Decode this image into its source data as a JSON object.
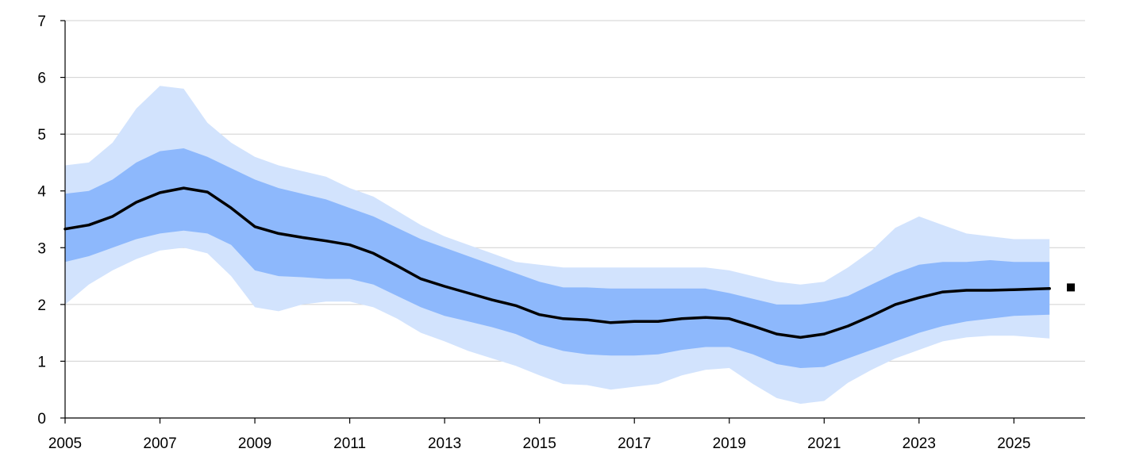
{
  "chart_data": {
    "type": "area",
    "title": "",
    "xlabel": "",
    "ylabel": "",
    "xlim": [
      2005,
      2026.5
    ],
    "ylim": [
      0,
      7
    ],
    "x_ticks": [
      "2005",
      "2007",
      "2009",
      "2011",
      "2013",
      "2015",
      "2017",
      "2019",
      "2021",
      "2023",
      "2025"
    ],
    "y_ticks": [
      "0",
      "1",
      "2",
      "3",
      "4",
      "5",
      "6",
      "7"
    ],
    "grid": "horizontal",
    "legend": "none",
    "colors": {
      "outer_band": "#d2e3fd",
      "inner_band": "#8db8fc",
      "median_line": "#000000",
      "point_marker": "#000000",
      "gridline": "#d0d0d0"
    },
    "x": [
      2005.0,
      2005.5,
      2006.0,
      2006.5,
      2007.0,
      2007.5,
      2008.0,
      2008.5,
      2009.0,
      2009.5,
      2010.0,
      2010.5,
      2011.0,
      2011.5,
      2012.0,
      2012.5,
      2013.0,
      2013.5,
      2014.0,
      2014.5,
      2015.0,
      2015.5,
      2016.0,
      2016.5,
      2017.0,
      2017.5,
      2018.0,
      2018.5,
      2019.0,
      2019.5,
      2020.0,
      2020.5,
      2021.0,
      2021.5,
      2022.0,
      2022.5,
      2023.0,
      2023.5,
      2024.0,
      2024.5,
      2025.0,
      2025.75
    ],
    "series": [
      {
        "role": "outer_band_upper",
        "values": [
          4.45,
          4.5,
          4.85,
          5.45,
          5.85,
          5.8,
          5.2,
          4.85,
          4.6,
          4.45,
          4.35,
          4.25,
          4.05,
          3.9,
          3.65,
          3.4,
          3.2,
          3.05,
          2.9,
          2.75,
          2.7,
          2.65,
          2.65,
          2.65,
          2.65,
          2.65,
          2.65,
          2.65,
          2.6,
          2.5,
          2.4,
          2.35,
          2.4,
          2.65,
          2.95,
          3.35,
          3.55,
          3.4,
          3.25,
          3.2,
          3.15,
          3.15
        ]
      },
      {
        "role": "inner_band_upper",
        "values": [
          3.95,
          4.0,
          4.2,
          4.5,
          4.7,
          4.75,
          4.6,
          4.4,
          4.2,
          4.05,
          3.95,
          3.85,
          3.7,
          3.55,
          3.35,
          3.15,
          3.0,
          2.85,
          2.7,
          2.55,
          2.4,
          2.3,
          2.3,
          2.28,
          2.28,
          2.28,
          2.28,
          2.28,
          2.2,
          2.1,
          2.0,
          2.0,
          2.05,
          2.15,
          2.35,
          2.55,
          2.7,
          2.75,
          2.75,
          2.78,
          2.75,
          2.75
        ]
      },
      {
        "name": "",
        "role": "median",
        "values": [
          3.33,
          3.4,
          3.55,
          3.8,
          3.97,
          4.05,
          3.98,
          3.7,
          3.37,
          3.25,
          3.18,
          3.12,
          3.05,
          2.9,
          2.68,
          2.45,
          2.32,
          2.2,
          2.08,
          1.98,
          1.82,
          1.75,
          1.73,
          1.68,
          1.7,
          1.7,
          1.75,
          1.77,
          1.75,
          1.62,
          1.48,
          1.42,
          1.48,
          1.62,
          1.8,
          2.0,
          2.12,
          2.22,
          2.25,
          2.25,
          2.26,
          2.28
        ]
      },
      {
        "role": "inner_band_lower",
        "values": [
          2.75,
          2.85,
          3.0,
          3.15,
          3.25,
          3.3,
          3.25,
          3.05,
          2.6,
          2.5,
          2.48,
          2.45,
          2.45,
          2.35,
          2.15,
          1.95,
          1.8,
          1.7,
          1.6,
          1.48,
          1.3,
          1.18,
          1.12,
          1.1,
          1.1,
          1.12,
          1.2,
          1.25,
          1.25,
          1.12,
          0.95,
          0.88,
          0.9,
          1.05,
          1.2,
          1.35,
          1.5,
          1.62,
          1.7,
          1.75,
          1.8,
          1.82
        ]
      },
      {
        "role": "outer_band_lower",
        "values": [
          2.0,
          2.35,
          2.6,
          2.8,
          2.95,
          3.0,
          2.9,
          2.5,
          1.95,
          1.88,
          2.0,
          2.05,
          2.05,
          1.95,
          1.75,
          1.5,
          1.35,
          1.18,
          1.05,
          0.92,
          0.75,
          0.6,
          0.58,
          0.5,
          0.55,
          0.6,
          0.75,
          0.85,
          0.88,
          0.6,
          0.35,
          0.25,
          0.3,
          0.62,
          0.85,
          1.05,
          1.2,
          1.35,
          1.42,
          1.45,
          1.45,
          1.4
        ]
      }
    ],
    "points": [
      {
        "x": 2026.2,
        "y": 2.3
      }
    ]
  }
}
